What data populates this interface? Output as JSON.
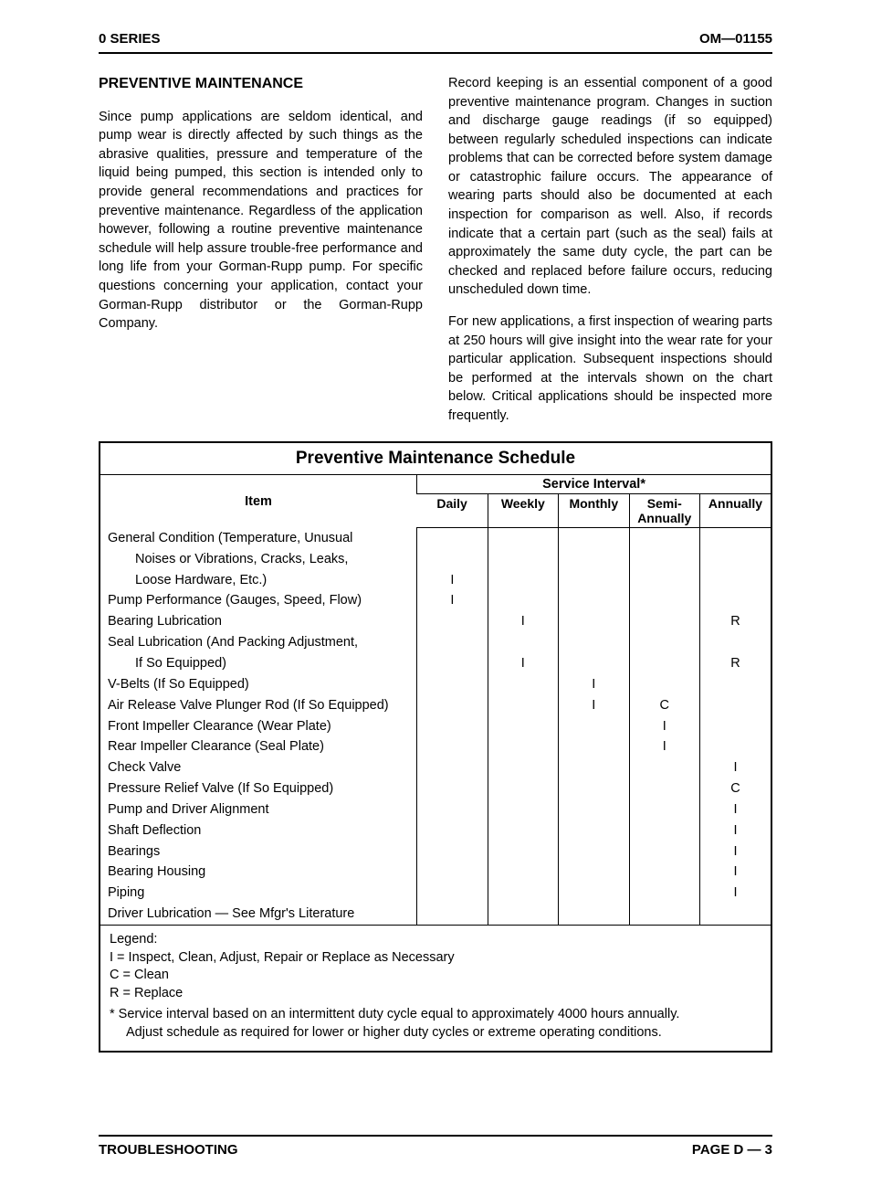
{
  "header": {
    "left": "0 SERIES",
    "right": "OM—01155"
  },
  "section_heading": "PREVENTIVE MAINTENANCE",
  "paragraphs": {
    "p1": "Since pump applications are seldom identical, and pump wear is directly affected by such things as the abrasive qualities, pressure and temperature of the liquid being pumped, this section is intended only to provide general recommendations and practices for preventive maintenance. Regardless of the application however, following a routine preventive maintenance schedule will help assure trouble-free performance and long life from your Gorman-Rupp pump. For specific questions concerning your application, contact your Gorman-Rupp distributor or the Gorman-Rupp Company.",
    "p2": "Record keeping is an essential component of a good preventive maintenance program. Changes in suction and discharge gauge readings (if so equipped) between regularly scheduled inspections can indicate problems that can be corrected before system damage or catastrophic failure occurs. The appearance of wearing parts should also be documented at each inspection for comparison as well. Also, if records indicate that a certain part (such as the seal) fails at approximately the same duty cycle, the part can be checked and replaced before failure occurs, reducing unscheduled down time.",
    "p3": "For new applications, a first inspection of wearing parts at 250 hours will give insight into the wear rate for your particular application. Subsequent inspections should be performed at the intervals shown on the chart below. Critical applications should be inspected more frequently."
  },
  "table": {
    "title": "Preventive Maintenance Schedule",
    "item_header": "Item",
    "service_header": "Service Interval*",
    "intervals": [
      "Daily",
      "Weekly",
      "Monthly",
      "Semi-\nAnnually",
      "Annually"
    ],
    "interval_labels": {
      "c0": "Daily",
      "c1": "Weekly",
      "c2": "Monthly",
      "c3a": "Semi-",
      "c3b": "Annually",
      "c4": "Annually"
    },
    "rows": [
      {
        "item_l1": "General Condition (Temperature, Unusual",
        "item_l2": "Noises or Vibrations, Cracks, Leaks,",
        "item_l3": "Loose Hardware, Etc.)",
        "marks": [
          "I",
          "",
          "",
          "",
          ""
        ]
      },
      {
        "item_l1": "Pump Performance (Gauges, Speed, Flow)",
        "marks": [
          "I",
          "",
          "",
          "",
          ""
        ]
      },
      {
        "item_l1": "Bearing Lubrication",
        "marks": [
          "",
          "I",
          "",
          "",
          "R"
        ]
      },
      {
        "item_l1": "Seal Lubrication (And Packing Adjustment,",
        "item_l2": "If So Equipped)",
        "marks": [
          "",
          "I",
          "",
          "",
          "R"
        ]
      },
      {
        "item_l1": "V-Belts (If So Equipped)",
        "marks": [
          "",
          "",
          "I",
          "",
          ""
        ]
      },
      {
        "item_l1": "Air Release Valve Plunger Rod (If So Equipped)",
        "marks": [
          "",
          "",
          "I",
          "C",
          ""
        ]
      },
      {
        "item_l1": "Front Impeller Clearance (Wear Plate)",
        "marks": [
          "",
          "",
          "",
          "I",
          ""
        ]
      },
      {
        "item_l1": "Rear Impeller Clearance (Seal Plate)",
        "marks": [
          "",
          "",
          "",
          "I",
          ""
        ]
      },
      {
        "item_l1": "Check Valve",
        "marks": [
          "",
          "",
          "",
          "",
          "I"
        ]
      },
      {
        "item_l1": "Pressure Relief Valve (If So Equipped)",
        "marks": [
          "",
          "",
          "",
          "",
          "C"
        ]
      },
      {
        "item_l1": "Pump and Driver Alignment",
        "marks": [
          "",
          "",
          "",
          "",
          "I"
        ]
      },
      {
        "item_l1": "Shaft Deflection",
        "marks": [
          "",
          "",
          "",
          "",
          "I"
        ]
      },
      {
        "item_l1": "Bearings",
        "marks": [
          "",
          "",
          "",
          "",
          "I"
        ]
      },
      {
        "item_l1": "Bearing Housing",
        "marks": [
          "",
          "",
          "",
          "",
          "I"
        ]
      },
      {
        "item_l1": "Piping",
        "marks": [
          "",
          "",
          "",
          "",
          "I"
        ]
      },
      {
        "item_l1": "Driver Lubrication — See Mfgr's Literature",
        "marks": [
          "",
          "",
          "",
          "",
          ""
        ]
      }
    ]
  },
  "legend": {
    "title": "Legend:",
    "l1": "I = Inspect, Clean, Adjust, Repair or Replace as Necessary",
    "l2": "C = Clean",
    "l3": "R = Replace",
    "note1": "* Service interval based on an intermittent duty cycle equal to approximately 4000 hours annually.",
    "note2": "Adjust schedule as required for lower or higher duty cycles or extreme operating conditions."
  },
  "footer": {
    "left": "TROUBLESHOOTING",
    "right": "PAGE D — 3"
  }
}
